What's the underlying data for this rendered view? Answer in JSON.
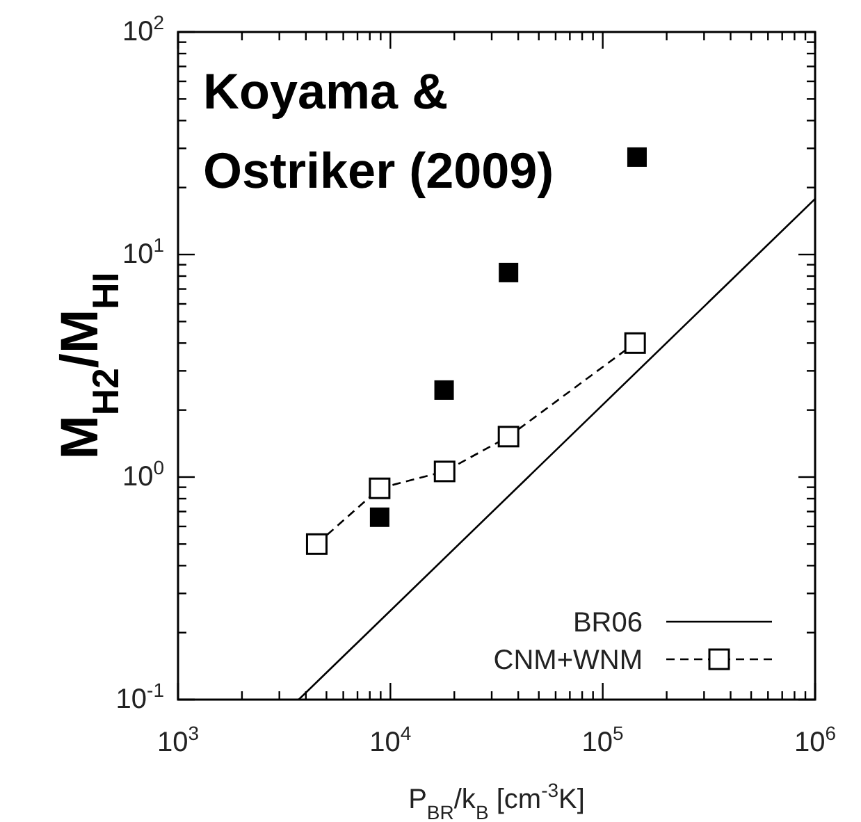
{
  "chart_data": {
    "type": "line",
    "xlabel": "P$_{BR}$/k$_{B}$ [cm$^{-3}$K]",
    "ylabel": "M$_{H2}$/M$_{HI}$",
    "annotations": [
      "Koyama & Ostriker (2009)"
    ],
    "log": "xy",
    "xlim": [
      1000,
      1000000
    ],
    "ylim": [
      0.1,
      100
    ],
    "xticks": [
      {
        "value": 1000,
        "label": "10$^{3}$"
      },
      {
        "value": 2000,
        "label": null
      },
      {
        "value": 3000,
        "label": null
      },
      {
        "value": 4000,
        "label": null
      },
      {
        "value": 5000,
        "label": null
      },
      {
        "value": 6000,
        "label": null
      },
      {
        "value": 7000,
        "label": null
      },
      {
        "value": 8000,
        "label": null
      },
      {
        "value": 9000,
        "label": null
      },
      {
        "value": 10000,
        "label": "10$^{4}$"
      },
      {
        "value": 20000,
        "label": null
      },
      {
        "value": 30000,
        "label": null
      },
      {
        "value": 40000,
        "label": null
      },
      {
        "value": 50000,
        "label": null
      },
      {
        "value": 60000,
        "label": null
      },
      {
        "value": 70000,
        "label": null
      },
      {
        "value": 80000,
        "label": null
      },
      {
        "value": 90000,
        "label": null
      },
      {
        "value": 100000,
        "label": "10$^{5}$"
      },
      {
        "value": 200000,
        "label": null
      },
      {
        "value": 300000,
        "label": null
      },
      {
        "value": 400000,
        "label": null
      },
      {
        "value": 500000,
        "label": null
      },
      {
        "value": 600000,
        "label": null
      },
      {
        "value": 700000,
        "label": null
      },
      {
        "value": 800000,
        "label": null
      },
      {
        "value": 900000,
        "label": null
      },
      {
        "value": 1000000,
        "label": "10$^{6}$"
      }
    ],
    "yticks": [
      {
        "value": 0.1,
        "label": "10$^{-1}$"
      },
      {
        "value": 0.2,
        "label": null
      },
      {
        "value": 0.3,
        "label": null
      },
      {
        "value": 0.4,
        "label": null
      },
      {
        "value": 0.5,
        "label": null
      },
      {
        "value": 0.6,
        "label": null
      },
      {
        "value": 0.7,
        "label": null
      },
      {
        "value": 0.8,
        "label": null
      },
      {
        "value": 0.9,
        "label": null
      },
      {
        "value": 1,
        "label": "10$^{0}$"
      },
      {
        "value": 2,
        "label": null
      },
      {
        "value": 3,
        "label": null
      },
      {
        "value": 4,
        "label": null
      },
      {
        "value": 5,
        "label": null
      },
      {
        "value": 6,
        "label": null
      },
      {
        "value": 7,
        "label": null
      },
      {
        "value": 8,
        "label": null
      },
      {
        "value": 9,
        "label": null
      },
      {
        "value": 10,
        "label": "10$^{1}$"
      },
      {
        "value": 20,
        "label": null
      },
      {
        "value": 30,
        "label": null
      },
      {
        "value": 40,
        "label": null
      },
      {
        "value": 50,
        "label": null
      },
      {
        "value": 60,
        "label": null
      },
      {
        "value": 70,
        "label": null
      },
      {
        "value": 80,
        "label": null
      },
      {
        "value": 90,
        "label": null
      },
      {
        "value": 100,
        "label": "10$^{2}$"
      }
    ],
    "grid": false,
    "legend": "bottom right",
    "series": [
      {
        "name": "BR06",
        "color": "#000000",
        "marker": "none",
        "line_style": "solid",
        "x": [
          3700,
          1000000
        ],
        "values": [
          0.1,
          17.8
        ]
      },
      {
        "name": "CNM+WNM",
        "color": "#000000",
        "marker": "square",
        "line_style": "dashed",
        "x": [
          4500,
          8900,
          18000,
          36000,
          142000
        ],
        "values": [
          0.5,
          0.89,
          1.06,
          1.52,
          4.0
        ]
      },
      {
        "type": "scatter",
        "color": "#000000",
        "marker": "square",
        "x": [
          8900,
          17900,
          36000,
          145000
        ],
        "values": [
          0.66,
          2.46,
          8.3,
          27.4
        ]
      }
    ]
  }
}
